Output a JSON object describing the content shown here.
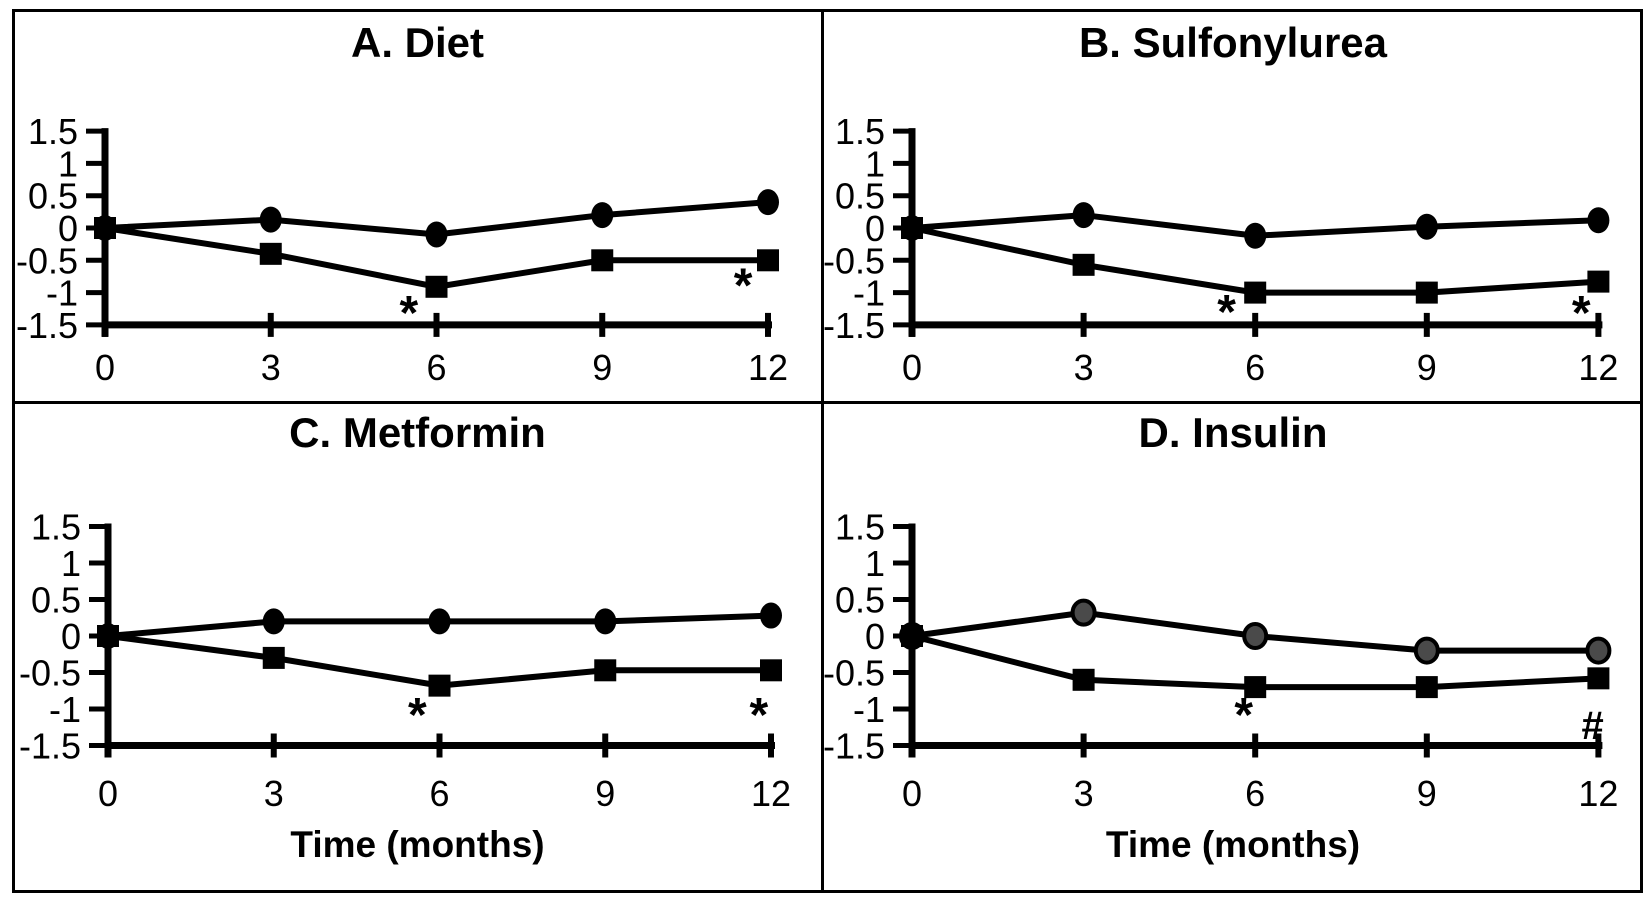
{
  "figure": {
    "background": "#ffffff",
    "border_color": "#000000",
    "line_color": "#000000",
    "insulin_circle_fill": "#4a4a4a"
  },
  "chart_data": [
    {
      "id": "diet",
      "type": "line",
      "title": "A. Diet",
      "xlabel": "",
      "x": [
        0,
        3,
        6,
        9,
        12
      ],
      "x_ticks": [
        "0",
        "3",
        "6",
        "9",
        "12"
      ],
      "y_tick_values": [
        1.5,
        1,
        0.5,
        0,
        -0.5,
        -1,
        -1.5
      ],
      "y_ticks": [
        "1.5",
        "1",
        "0.5",
        "0",
        "-0.5",
        "-1",
        "-1.5"
      ],
      "ylim": [
        -1.5,
        1.5
      ],
      "series": [
        {
          "name": "circle-series",
          "marker": "circle",
          "marker_fill": "#000000",
          "values": [
            0,
            0.13,
            -0.1,
            0.2,
            0.4
          ]
        },
        {
          "name": "square-series",
          "marker": "square",
          "marker_fill": "#000000",
          "values": [
            0,
            -0.4,
            -0.91,
            -0.5,
            -0.5
          ]
        }
      ],
      "annotations": [
        {
          "text": "*",
          "x": 5.5,
          "y": -1.18
        },
        {
          "text": "*",
          "x": 11.55,
          "y": -0.75
        }
      ]
    },
    {
      "id": "sulfonylurea",
      "type": "line",
      "title": "B. Sulfonylurea",
      "xlabel": "",
      "x": [
        0,
        3,
        6,
        9,
        12
      ],
      "x_ticks": [
        "0",
        "3",
        "6",
        "9",
        "12"
      ],
      "y_tick_values": [
        1.5,
        1,
        0.5,
        0,
        -0.5,
        -1,
        -1.5
      ],
      "y_ticks": [
        "1.5",
        "1",
        "0.5",
        "0",
        "-0.5",
        "-1",
        "-1.5"
      ],
      "ylim": [
        -1.5,
        1.5
      ],
      "series": [
        {
          "name": "circle-series",
          "marker": "circle",
          "marker_fill": "#000000",
          "values": [
            0,
            0.2,
            -0.12,
            0.02,
            0.12
          ]
        },
        {
          "name": "square-series",
          "marker": "square",
          "marker_fill": "#000000",
          "values": [
            0,
            -0.57,
            -1.0,
            -1.0,
            -0.83
          ]
        }
      ],
      "annotations": [
        {
          "text": "*",
          "x": 5.5,
          "y": -1.16
        },
        {
          "text": "*",
          "x": 11.7,
          "y": -1.18
        }
      ]
    },
    {
      "id": "metformin",
      "type": "line",
      "title": "C. Metformin",
      "xlabel": "Time (months)",
      "x": [
        0,
        3,
        6,
        9,
        12
      ],
      "x_ticks": [
        "0",
        "3",
        "6",
        "9",
        "12"
      ],
      "y_tick_values": [
        1.5,
        1,
        0.5,
        0,
        -0.5,
        -1,
        -1.5
      ],
      "y_ticks": [
        "1.5",
        "1",
        "0.5",
        "0",
        "-0.5",
        "-1",
        "-1.5"
      ],
      "ylim": [
        -1.5,
        1.5
      ],
      "series": [
        {
          "name": "circle-series",
          "marker": "circle",
          "marker_fill": "#000000",
          "values": [
            0,
            0.2,
            0.2,
            0.2,
            0.28
          ]
        },
        {
          "name": "square-series",
          "marker": "square",
          "marker_fill": "#000000",
          "values": [
            0,
            -0.3,
            -0.68,
            -0.47,
            -0.47
          ]
        }
      ],
      "annotations": [
        {
          "text": "*",
          "x": 5.6,
          "y": -0.96
        },
        {
          "text": "*",
          "x": 11.78,
          "y": -0.96
        }
      ]
    },
    {
      "id": "insulin",
      "type": "line",
      "title": "D. Insulin",
      "xlabel": "Time (months)",
      "x": [
        0,
        3,
        6,
        9,
        12
      ],
      "x_ticks": [
        "0",
        "3",
        "6",
        "9",
        "12"
      ],
      "y_tick_values": [
        1.5,
        1,
        0.5,
        0,
        -0.5,
        -1,
        -1.5
      ],
      "y_ticks": [
        "1.5",
        "1",
        "0.5",
        "0",
        "-0.5",
        "-1",
        "-1.5"
      ],
      "ylim": [
        -1.5,
        1.5
      ],
      "series": [
        {
          "name": "circle-series",
          "marker": "circle",
          "marker_fill": "#4a4a4a",
          "marker_stroke": "#000000",
          "values": [
            0,
            0.32,
            0.0,
            -0.2,
            -0.2
          ]
        },
        {
          "name": "square-series",
          "marker": "square",
          "marker_fill": "#000000",
          "values": [
            0,
            -0.6,
            -0.7,
            -0.7,
            -0.58
          ]
        }
      ],
      "annotations": [
        {
          "text": "*",
          "x": 5.8,
          "y": -0.96
        },
        {
          "text": "#",
          "x": 11.9,
          "y": -1.22
        }
      ]
    }
  ]
}
